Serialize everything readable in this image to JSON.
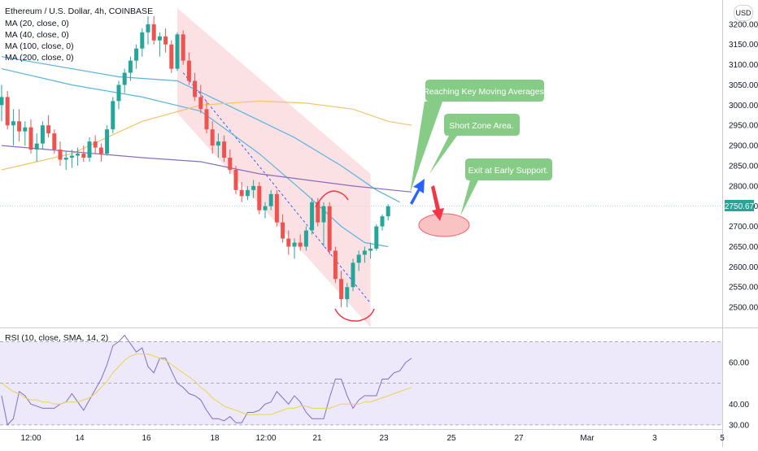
{
  "header": {
    "title": "Ethereum / U.S. Dollar, 4h, COINBASE",
    "ma_labels": [
      "MA (20, close, 0)",
      "MA (40, close, 0)",
      "MA (100, close, 0)",
      "MA (200, close, 0)"
    ],
    "currency": "USD",
    "rsi_label": "RSI (10, close, SMA, 14, 2)"
  },
  "colors": {
    "up": "#26a69a",
    "down": "#ef5350",
    "ma20": "#5ab4e0",
    "ma100": "#f5c468",
    "ma200": "#8b6bbf",
    "channel": "#f8c9cc",
    "callout": "#7fc97f",
    "rsi_line": "#7e6fc9",
    "rsi_sma": "#e8d44d",
    "rsi_band": "#ede9fb",
    "arrow_up": "#2962ff",
    "arrow_down": "#f23645"
  },
  "annotations": {
    "callout1": "Reaching Key Moving Averages.",
    "callout2": "Short Zone Area.",
    "callout3": "Exit at Early Support.",
    "current_price": "2750.67"
  },
  "chart_data": [
    {
      "type": "candlestick",
      "title": "Ethereum / U.S. Dollar, 4h, COINBASE",
      "ylabel": "USD",
      "ylim": [
        2450,
        3260
      ],
      "y_ticks": [
        2500,
        2550,
        2600,
        2650,
        2700,
        2750,
        2800,
        2850,
        2900,
        2950,
        3000,
        3050,
        3100,
        3150,
        3200
      ],
      "x_tick_labels": [
        "12:00",
        "14",
        "16",
        "18",
        "12:00",
        "21",
        "23",
        "25",
        "27",
        "Mar",
        "3",
        "5"
      ],
      "current_price": 2750.67,
      "ohlc": [
        [
          3000,
          3050,
          2960,
          3020
        ],
        [
          3020,
          3035,
          2940,
          2950
        ],
        [
          2950,
          2990,
          2900,
          2960
        ],
        [
          2960,
          2990,
          2910,
          2935
        ],
        [
          2935,
          2960,
          2900,
          2945
        ],
        [
          2945,
          2965,
          2880,
          2890
        ],
        [
          2890,
          2930,
          2860,
          2905
        ],
        [
          2905,
          2960,
          2890,
          2950
        ],
        [
          2950,
          2975,
          2920,
          2930
        ],
        [
          2930,
          2940,
          2880,
          2890
        ],
        [
          2890,
          2910,
          2850,
          2865
        ],
        [
          2865,
          2885,
          2840,
          2870
        ],
        [
          2870,
          2890,
          2845,
          2875
        ],
        [
          2875,
          2895,
          2850,
          2880
        ],
        [
          2880,
          2900,
          2860,
          2870
        ],
        [
          2870,
          2920,
          2860,
          2910
        ],
        [
          2910,
          2925,
          2880,
          2895
        ],
        [
          2895,
          2905,
          2860,
          2880
        ],
        [
          2880,
          2950,
          2875,
          2940
        ],
        [
          2940,
          3020,
          2930,
          3010
        ],
        [
          3010,
          3060,
          2990,
          3050
        ],
        [
          3050,
          3090,
          3030,
          3080
        ],
        [
          3080,
          3120,
          3060,
          3110
        ],
        [
          3110,
          3150,
          3090,
          3140
        ],
        [
          3140,
          3190,
          3120,
          3180
        ],
        [
          3180,
          3220,
          3150,
          3200
        ],
        [
          3200,
          3220,
          3150,
          3160
        ],
        [
          3160,
          3180,
          3120,
          3170
        ],
        [
          3170,
          3190,
          3130,
          3150
        ],
        [
          3150,
          3160,
          3080,
          3090
        ],
        [
          3090,
          3180,
          3085,
          3175
        ],
        [
          3175,
          3185,
          3100,
          3110
        ],
        [
          3110,
          3130,
          3050,
          3060
        ],
        [
          3060,
          3080,
          3010,
          3020
        ],
        [
          3020,
          3050,
          2980,
          2990
        ],
        [
          2990,
          3010,
          2930,
          2940
        ],
        [
          2940,
          2960,
          2880,
          2900
        ],
        [
          2900,
          2930,
          2870,
          2910
        ],
        [
          2910,
          2925,
          2860,
          2870
        ],
        [
          2870,
          2890,
          2830,
          2840
        ],
        [
          2840,
          2850,
          2780,
          2790
        ],
        [
          2790,
          2810,
          2760,
          2775
        ],
        [
          2775,
          2800,
          2765,
          2790
        ],
        [
          2790,
          2815,
          2770,
          2800
        ],
        [
          2800,
          2810,
          2730,
          2740
        ],
        [
          2740,
          2760,
          2720,
          2750
        ],
        [
          2750,
          2790,
          2740,
          2780
        ],
        [
          2780,
          2790,
          2700,
          2710
        ],
        [
          2710,
          2730,
          2660,
          2670
        ],
        [
          2670,
          2690,
          2630,
          2650
        ],
        [
          2650,
          2670,
          2620,
          2660
        ],
        [
          2660,
          2680,
          2640,
          2650
        ],
        [
          2650,
          2700,
          2640,
          2690
        ],
        [
          2690,
          2770,
          2680,
          2760
        ],
        [
          2760,
          2770,
          2700,
          2710
        ],
        [
          2710,
          2760,
          2650,
          2750
        ],
        [
          2750,
          2760,
          2630,
          2640
        ],
        [
          2640,
          2650,
          2560,
          2570
        ],
        [
          2570,
          2590,
          2500,
          2520
        ],
        [
          2520,
          2560,
          2500,
          2550
        ],
        [
          2550,
          2620,
          2540,
          2610
        ],
        [
          2610,
          2640,
          2590,
          2630
        ],
        [
          2630,
          2650,
          2610,
          2640
        ],
        [
          2640,
          2660,
          2620,
          2645
        ],
        [
          2645,
          2705,
          2640,
          2700
        ],
        [
          2700,
          2730,
          2690,
          2725
        ],
        [
          2725,
          2755,
          2715,
          2750
        ]
      ],
      "ma_series": [
        {
          "name": "MA (20, close, 0)",
          "color": "#5ab4e0",
          "points": [
            [
              0,
              3090
            ],
            [
              12,
              3050
            ],
            [
              24,
              3020
            ],
            [
              34,
              2985
            ],
            [
              44,
              2880
            ],
            [
              52,
              2780
            ],
            [
              58,
              2700
            ],
            [
              62,
              2660
            ],
            [
              66,
              2650
            ]
          ]
        },
        {
          "name": "MA (40, close, 0)",
          "color": "#5ab4e0",
          "points": [
            [
              0,
              3120
            ],
            [
              20,
              3070
            ],
            [
              30,
              3060
            ],
            [
              40,
              2990
            ],
            [
              50,
              2920
            ],
            [
              58,
              2850
            ],
            [
              64,
              2790
            ],
            [
              68,
              2760
            ]
          ]
        },
        {
          "name": "MA (100, close, 0)",
          "color": "#f5c468",
          "points": [
            [
              0,
              2840
            ],
            [
              12,
              2880
            ],
            [
              24,
              2960
            ],
            [
              34,
              3000
            ],
            [
              44,
              3010
            ],
            [
              52,
              3005
            ],
            [
              60,
              2990
            ],
            [
              66,
              2960
            ],
            [
              70,
              2950
            ]
          ]
        },
        {
          "name": "MA (200, close, 0)",
          "color": "#8b6bbf",
          "points": [
            [
              0,
              2900
            ],
            [
              12,
              2885
            ],
            [
              24,
              2870
            ],
            [
              34,
              2860
            ],
            [
              44,
              2830
            ],
            [
              52,
              2815
            ],
            [
              60,
              2800
            ],
            [
              70,
              2785
            ]
          ]
        }
      ]
    },
    {
      "type": "line",
      "title": "RSI (10, close, SMA, 14, 2)",
      "ylim": [
        28,
        76
      ],
      "y_ticks": [
        30,
        40,
        50,
        60,
        70
      ],
      "y_tick_labels": [
        "30.00",
        "40.00",
        "",
        "60.00",
        ""
      ],
      "band": [
        30,
        70
      ],
      "series": [
        {
          "name": "RSI",
          "values": [
            44,
            30,
            33,
            46,
            44,
            40,
            39,
            38,
            38,
            38,
            40,
            41,
            45,
            41,
            37,
            42,
            47,
            52,
            59,
            68,
            70,
            73,
            69,
            65,
            67,
            58,
            55,
            62,
            62,
            56,
            50,
            48,
            45,
            44,
            42,
            37,
            33,
            33,
            32,
            34,
            31,
            31,
            36,
            36,
            37,
            40,
            41,
            46,
            43,
            40,
            44,
            41,
            36,
            33,
            33,
            33,
            43,
            52,
            52,
            44,
            38,
            42,
            44,
            44,
            44,
            52,
            52,
            55,
            56,
            60,
            62
          ]
        },
        {
          "name": "RSI-based MA",
          "values": [
            50,
            48,
            46,
            45,
            43,
            42,
            42,
            41,
            41,
            40,
            40,
            41,
            41,
            41,
            42,
            43,
            45,
            48,
            51,
            55,
            58,
            61,
            63,
            64,
            64,
            64,
            63,
            62,
            61,
            59,
            57,
            55,
            53,
            51,
            48,
            46,
            43,
            41,
            39,
            38,
            37,
            36,
            35,
            35,
            35,
            35,
            35,
            36,
            37,
            38,
            38,
            39,
            39,
            38,
            38,
            38,
            38,
            39,
            40,
            40,
            40,
            40,
            41,
            41,
            42,
            43,
            44,
            45,
            46,
            47,
            48
          ]
        }
      ]
    }
  ]
}
